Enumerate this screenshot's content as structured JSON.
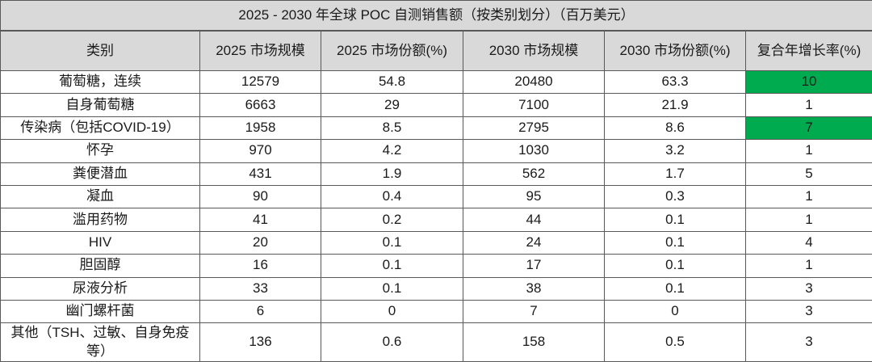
{
  "chart_data": {
    "type": "table",
    "title": "2025 - 2030 年全球 POC 自测销售额（按类别划分）（百万美元）",
    "columns": [
      "类别",
      "2025 市场规模",
      "2025 市场份额(%)",
      "2030 市场规模",
      "2030 市场份额(%)",
      "复合年增长率(%)"
    ],
    "rows": [
      [
        "葡萄糖，连续",
        12579,
        54.8,
        20480,
        63.3,
        10
      ],
      [
        "自身葡萄糖",
        6663,
        29,
        7100,
        21.9,
        1
      ],
      [
        "传染病（包括COVID-19）",
        1958,
        8.5,
        2795,
        8.6,
        7
      ],
      [
        "怀孕",
        970,
        4.2,
        1030,
        3.2,
        1
      ],
      [
        "粪便潜血",
        431,
        1.9,
        562,
        1.7,
        5
      ],
      [
        "凝血",
        90,
        0.4,
        95,
        0.3,
        1
      ],
      [
        "滥用药物",
        41,
        0.2,
        44,
        0.1,
        1
      ],
      [
        "HIV",
        20,
        0.1,
        24,
        0.1,
        4
      ],
      [
        "胆固醇",
        16,
        0.1,
        17,
        0.1,
        1
      ],
      [
        "尿液分析",
        33,
        0.1,
        38,
        0.1,
        3
      ],
      [
        "幽门螺杆菌",
        6,
        0,
        7,
        0,
        3
      ],
      [
        "其他（TSH、过敏、自身免疫等）",
        136,
        0.6,
        158,
        0.5,
        3
      ]
    ],
    "highlight_rows": [
      0,
      2
    ],
    "highlight_column": 5,
    "layout_hints": {
      "grid": true,
      "title_band_bg": "#d9d9d9",
      "header_bg": "#d9d9d9",
      "highlight_color": "#00ab50",
      "border_color": "#595959"
    }
  },
  "colors": {
    "header_bg": "#d9d9d9",
    "highlight_green": "#00ab50",
    "border": "#595959",
    "text": "#1a1a1a",
    "background": "#ffffff"
  }
}
